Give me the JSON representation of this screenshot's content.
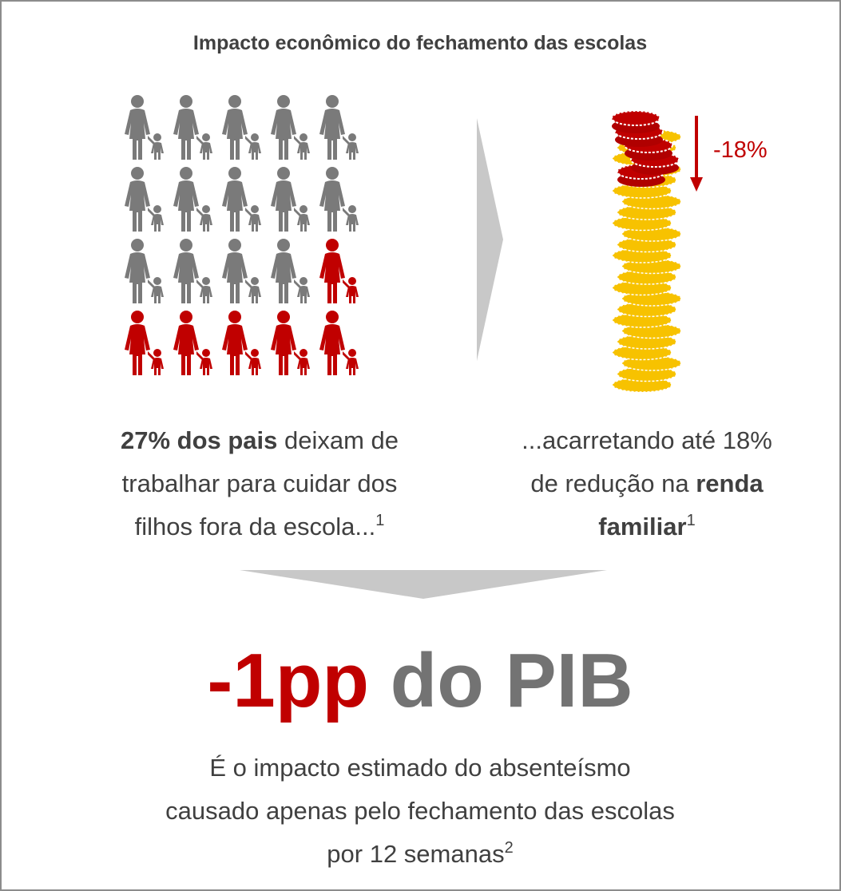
{
  "title": "Impacto econômico do fechamento das escolas",
  "left_caption": {
    "lines": [
      {
        "bold": "27% dos pais",
        "text": " deixam de"
      },
      {
        "text": "trabalhar para cuidar dos"
      },
      {
        "text": "filhos fora da escola...",
        "note": "1"
      }
    ]
  },
  "right_caption": {
    "lines": [
      {
        "text": "...acarretando até 18%"
      },
      {
        "text": "de redução na ",
        "bold": "renda"
      },
      {
        "bold": "familiar",
        "note": "1"
      }
    ]
  },
  "reduction_label": "-18%",
  "headline": {
    "highlight": "-1pp",
    "rest": " do PIB"
  },
  "conclusion": {
    "lines": [
      {
        "text": "É o impacto estimado do absenteísmo"
      },
      {
        "text": "causado apenas pelo fechamento das escolas"
      },
      {
        "text": "por 12 semanas",
        "note": "2"
      }
    ]
  }
}
